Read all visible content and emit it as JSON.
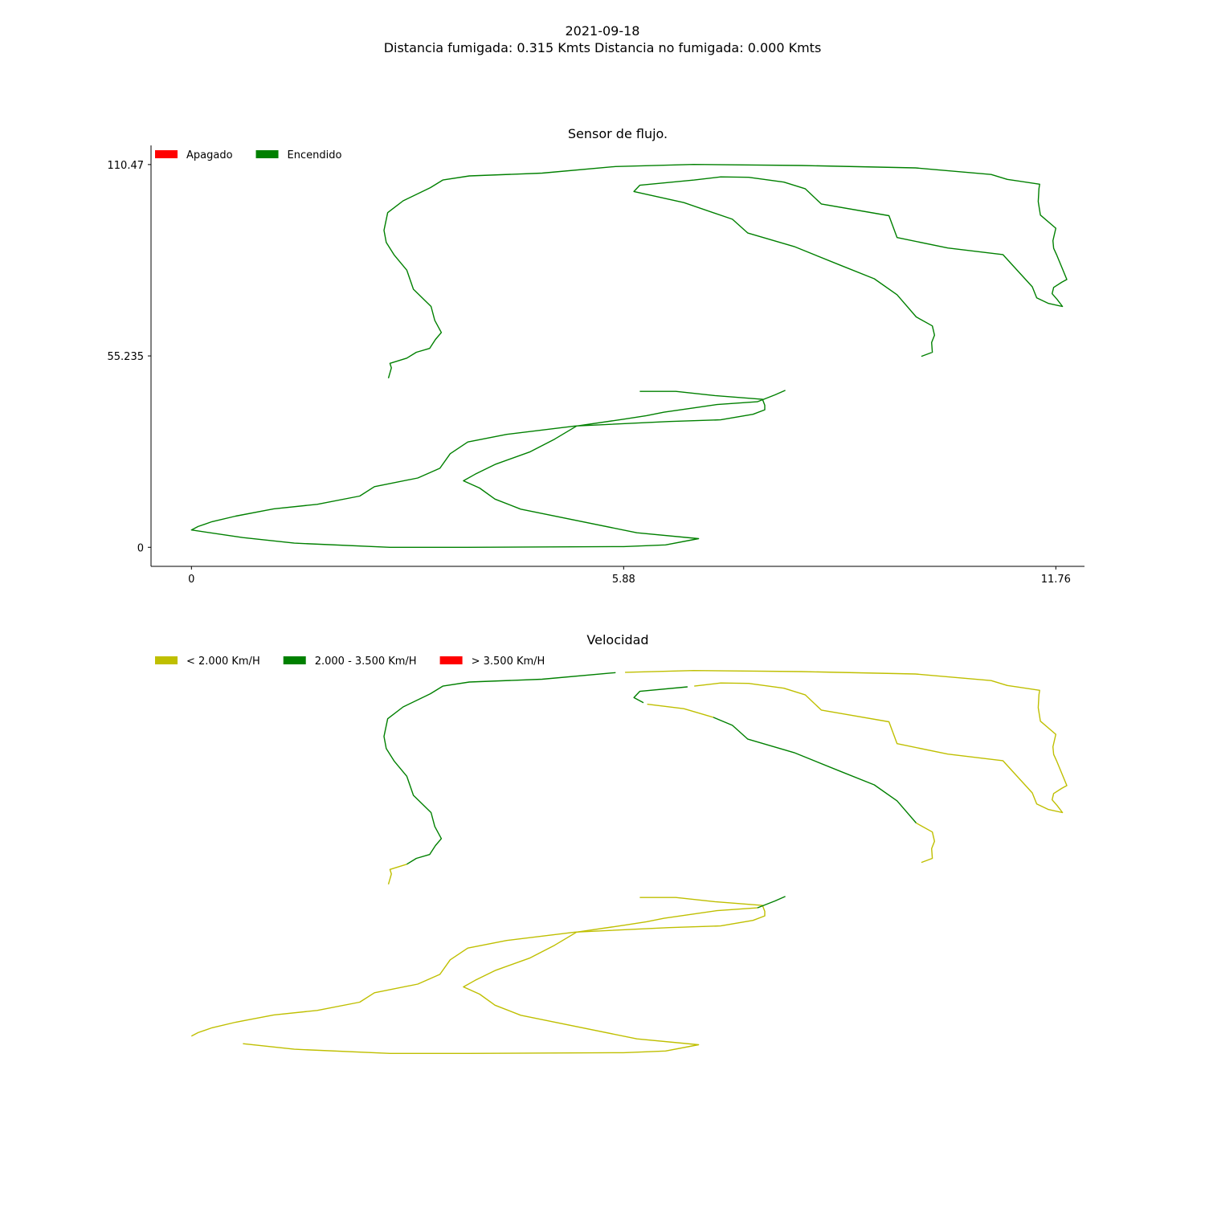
{
  "figure": {
    "title_line1": "2021-09-18",
    "title_line2": "Distancia fumigada: 0.315 Kmts Distancia no fumigada: 0.000 Kmts"
  },
  "colors": {
    "green": "#008000",
    "red": "#ff0000",
    "olive": "#bfbf00"
  },
  "chart_data": [
    {
      "type": "line",
      "title": "Sensor de flujo.",
      "xlabel": "",
      "ylabel": "",
      "xlim": [
        -0.55,
        12.15
      ],
      "ylim": [
        -5.5,
        116.0
      ],
      "xticks": [
        0,
        5.88,
        11.76
      ],
      "xtick_labels": [
        "0",
        "5.88",
        "11.76"
      ],
      "yticks": [
        0,
        55.235,
        110.47
      ],
      "ytick_labels": [
        "0",
        "55.235",
        "110.47"
      ],
      "grid": false,
      "legend_position": "top-left",
      "legend": [
        {
          "label": "Apagado",
          "color": "#ff0000"
        },
        {
          "label": "Encendido",
          "color": "#008000"
        }
      ],
      "series": [
        {
          "name": "Encendido",
          "color": "#008000",
          "points": [
            [
              2.68,
              48.8
            ],
            [
              2.72,
              51.8
            ],
            [
              2.7,
              53.1
            ],
            [
              2.93,
              54.6
            ],
            [
              3.06,
              56.3
            ],
            [
              3.24,
              57.4
            ],
            [
              3.32,
              60.0
            ],
            [
              3.4,
              62.0
            ],
            [
              3.31,
              65.5
            ],
            [
              3.26,
              69.5
            ],
            [
              3.02,
              74.5
            ],
            [
              2.93,
              80.0
            ],
            [
              2.76,
              84.3
            ],
            [
              2.65,
              88.0
            ],
            [
              2.62,
              91.5
            ],
            [
              2.67,
              96.6
            ],
            [
              2.88,
              100.0
            ],
            [
              3.25,
              103.8
            ],
            [
              3.42,
              106.0
            ],
            [
              3.78,
              107.2
            ],
            [
              4.77,
              108.0
            ],
            [
              5.77,
              109.9
            ],
            [
              6.83,
              110.5
            ],
            [
              8.3,
              110.2
            ],
            [
              9.85,
              109.5
            ],
            [
              10.88,
              107.6
            ],
            [
              11.1,
              106.2
            ],
            [
              11.54,
              104.8
            ],
            [
              11.53,
              103.5
            ],
            [
              11.52,
              99.8
            ],
            [
              11.55,
              95.9
            ],
            [
              11.76,
              92.1
            ],
            [
              11.72,
              88.5
            ],
            [
              11.73,
              86.3
            ],
            [
              11.77,
              84.5
            ],
            [
              11.91,
              77.3
            ],
            [
              11.84,
              76.5
            ],
            [
              11.73,
              75.0
            ],
            [
              11.71,
              73.2
            ],
            [
              11.78,
              71.5
            ],
            [
              11.85,
              69.5
            ],
            [
              11.66,
              70.4
            ],
            [
              11.5,
              72.0
            ],
            [
              11.44,
              75.2
            ],
            [
              11.04,
              84.5
            ],
            [
              10.29,
              86.4
            ],
            [
              9.6,
              89.4
            ],
            [
              9.49,
              95.7
            ],
            [
              8.57,
              99.1
            ],
            [
              8.35,
              103.5
            ],
            [
              8.06,
              105.4
            ],
            [
              7.58,
              106.8
            ],
            [
              7.2,
              106.9
            ],
            [
              6.84,
              106.0
            ],
            [
              6.1,
              104.5
            ],
            [
              6.02,
              102.7
            ],
            [
              6.7,
              99.5
            ],
            [
              7.36,
              94.7
            ],
            [
              7.57,
              90.7
            ],
            [
              8.2,
              86.8
            ],
            [
              8.83,
              81.4
            ],
            [
              9.29,
              77.5
            ],
            [
              9.6,
              72.9
            ],
            [
              9.86,
              66.5
            ],
            [
              10.08,
              63.9
            ],
            [
              10.11,
              61.2
            ],
            [
              10.07,
              59.1
            ],
            [
              10.08,
              56.3
            ],
            [
              9.93,
              55.1
            ]
          ]
        },
        {
          "name": "Encendido",
          "color": "#008000",
          "points": [
            [
              6.1,
              45.0
            ],
            [
              6.59,
              45.0
            ],
            [
              7.12,
              43.8
            ],
            [
              7.77,
              42.7
            ],
            [
              7.8,
              41.0
            ],
            [
              7.8,
              39.7
            ],
            [
              7.64,
              38.4
            ],
            [
              7.2,
              36.8
            ],
            [
              6.5,
              36.3
            ],
            [
              5.22,
              35.0
            ],
            [
              4.29,
              32.6
            ],
            [
              3.76,
              30.4
            ],
            [
              3.52,
              27.0
            ],
            [
              3.38,
              22.8
            ],
            [
              3.08,
              20.0
            ],
            [
              2.49,
              17.5
            ],
            [
              2.29,
              14.8
            ],
            [
              1.71,
              12.4
            ],
            [
              1.12,
              11.1
            ],
            [
              0.6,
              9.0
            ],
            [
              0.28,
              7.4
            ],
            [
              0.09,
              6.0
            ],
            [
              0.0,
              5.0
            ],
            [
              0.7,
              2.8
            ],
            [
              1.4,
              1.2
            ],
            [
              2.7,
              0.0
            ],
            [
              3.75,
              0.0
            ],
            [
              5.88,
              0.2
            ],
            [
              6.45,
              0.7
            ],
            [
              6.9,
              2.5
            ],
            [
              6.06,
              4.2
            ],
            [
              4.48,
              11.0
            ],
            [
              4.13,
              13.9
            ],
            [
              3.92,
              17.1
            ],
            [
              3.7,
              19.2
            ],
            [
              3.86,
              21.1
            ],
            [
              4.14,
              24.0
            ],
            [
              4.6,
              27.5
            ],
            [
              4.94,
              31.2
            ],
            [
              5.24,
              35.0
            ],
            [
              5.89,
              37.0
            ],
            [
              6.19,
              38.0
            ],
            [
              6.43,
              39.0
            ],
            [
              7.15,
              41.2
            ],
            [
              7.7,
              42.0
            ],
            [
              7.94,
              44.0
            ],
            [
              8.08,
              45.3
            ]
          ]
        }
      ]
    },
    {
      "type": "line",
      "title": "Velocidad",
      "xlabel": "",
      "ylabel": "",
      "xlim": [
        -0.55,
        12.15
      ],
      "ylim": [
        -5.5,
        116.0
      ],
      "axes_visible": false,
      "grid": false,
      "legend_position": "top-left",
      "legend": [
        {
          "label": "< 2.000 Km/H",
          "color": "#bfbf00"
        },
        {
          "label": "2.000 - 3.500 Km/H",
          "color": "#008000"
        },
        {
          "label": "> 3.500 Km/H",
          "color": "#ff0000"
        }
      ],
      "series": [
        {
          "name": "< 2.000 Km/H",
          "color": "#bfbf00",
          "points": [
            [
              2.68,
              48.8
            ],
            [
              2.72,
              51.8
            ],
            [
              2.7,
              53.1
            ],
            [
              2.93,
              54.6
            ]
          ]
        },
        {
          "name": "2.000 - 3.500 Km/H",
          "color": "#008000",
          "points": [
            [
              2.93,
              54.6
            ],
            [
              3.06,
              56.3
            ],
            [
              3.24,
              57.4
            ],
            [
              3.32,
              60.0
            ],
            [
              3.4,
              62.0
            ],
            [
              3.31,
              65.5
            ],
            [
              3.26,
              69.5
            ],
            [
              3.02,
              74.5
            ],
            [
              2.93,
              80.0
            ],
            [
              2.76,
              84.3
            ],
            [
              2.65,
              88.0
            ],
            [
              2.62,
              91.5
            ],
            [
              2.67,
              96.6
            ],
            [
              2.88,
              100.0
            ],
            [
              3.25,
              103.8
            ],
            [
              3.42,
              106.0
            ],
            [
              3.78,
              107.2
            ],
            [
              4.77,
              108.0
            ],
            [
              5.77,
              109.9
            ]
          ]
        },
        {
          "name": "< 2.000 Km/H",
          "color": "#bfbf00",
          "points": [
            [
              5.9,
              110.0
            ],
            [
              6.83,
              110.5
            ],
            [
              8.3,
              110.2
            ],
            [
              9.85,
              109.5
            ],
            [
              10.88,
              107.6
            ],
            [
              11.1,
              106.2
            ],
            [
              11.54,
              104.8
            ],
            [
              11.53,
              103.5
            ],
            [
              11.52,
              99.8
            ],
            [
              11.55,
              95.9
            ],
            [
              11.76,
              92.1
            ],
            [
              11.72,
              88.5
            ],
            [
              11.73,
              86.3
            ],
            [
              11.77,
              84.5
            ],
            [
              11.91,
              77.3
            ],
            [
              11.84,
              76.5
            ],
            [
              11.73,
              75.0
            ],
            [
              11.71,
              73.2
            ],
            [
              11.78,
              71.5
            ],
            [
              11.85,
              69.5
            ],
            [
              11.66,
              70.4
            ],
            [
              11.5,
              72.0
            ],
            [
              11.44,
              75.2
            ],
            [
              11.04,
              84.5
            ],
            [
              10.29,
              86.4
            ],
            [
              9.6,
              89.4
            ],
            [
              9.49,
              95.7
            ],
            [
              8.57,
              99.1
            ],
            [
              8.35,
              103.5
            ],
            [
              8.06,
              105.4
            ],
            [
              7.58,
              106.8
            ],
            [
              7.2,
              106.9
            ],
            [
              6.84,
              106.0
            ]
          ]
        },
        {
          "name": "2.000 - 3.500 Km/H",
          "color": "#008000",
          "points": [
            [
              6.75,
              105.8
            ],
            [
              6.1,
              104.5
            ],
            [
              6.02,
              102.7
            ],
            [
              6.15,
              101.2
            ]
          ]
        },
        {
          "name": "< 2.000 Km/H",
          "color": "#bfbf00",
          "points": [
            [
              6.2,
              100.8
            ],
            [
              6.7,
              99.5
            ],
            [
              7.1,
              97.0
            ]
          ]
        },
        {
          "name": "2.000 - 3.500 Km/H",
          "color": "#008000",
          "points": [
            [
              7.1,
              97.0
            ],
            [
              7.36,
              94.7
            ],
            [
              7.57,
              90.7
            ],
            [
              8.2,
              86.8
            ],
            [
              8.83,
              81.4
            ],
            [
              9.29,
              77.5
            ],
            [
              9.6,
              72.9
            ],
            [
              9.86,
              66.5
            ]
          ]
        },
        {
          "name": "< 2.000 Km/H",
          "color": "#bfbf00",
          "points": [
            [
              9.86,
              66.5
            ],
            [
              10.08,
              63.9
            ],
            [
              10.11,
              61.2
            ],
            [
              10.07,
              59.1
            ],
            [
              10.08,
              56.3
            ],
            [
              9.93,
              55.1
            ]
          ]
        },
        {
          "name": "< 2.000 Km/H",
          "color": "#bfbf00",
          "points": [
            [
              6.1,
              45.0
            ],
            [
              6.59,
              45.0
            ],
            [
              7.12,
              43.8
            ],
            [
              7.77,
              42.7
            ],
            [
              7.8,
              41.0
            ],
            [
              7.8,
              39.7
            ],
            [
              7.64,
              38.4
            ],
            [
              7.2,
              36.8
            ],
            [
              6.5,
              36.3
            ],
            [
              5.22,
              35.0
            ],
            [
              4.29,
              32.6
            ],
            [
              3.76,
              30.4
            ],
            [
              3.52,
              27.0
            ],
            [
              3.38,
              22.8
            ],
            [
              3.08,
              20.0
            ],
            [
              2.49,
              17.5
            ],
            [
              2.29,
              14.8
            ],
            [
              1.71,
              12.4
            ],
            [
              1.12,
              11.1
            ],
            [
              0.6,
              9.0
            ],
            [
              0.28,
              7.4
            ],
            [
              0.09,
              6.0
            ],
            [
              0.0,
              5.0
            ]
          ]
        },
        {
          "name": "< 2.000 Km/H",
          "color": "#bfbf00",
          "points": [
            [
              0.7,
              2.8
            ],
            [
              1.4,
              1.2
            ],
            [
              2.7,
              0.0
            ],
            [
              3.75,
              0.0
            ],
            [
              5.88,
              0.2
            ],
            [
              6.45,
              0.7
            ],
            [
              6.9,
              2.5
            ],
            [
              6.06,
              4.2
            ],
            [
              4.48,
              11.0
            ],
            [
              4.13,
              13.9
            ],
            [
              3.92,
              17.1
            ],
            [
              3.7,
              19.2
            ],
            [
              3.86,
              21.1
            ],
            [
              4.14,
              24.0
            ],
            [
              4.6,
              27.5
            ],
            [
              4.94,
              31.2
            ],
            [
              5.24,
              35.0
            ],
            [
              5.89,
              37.0
            ],
            [
              6.19,
              38.0
            ],
            [
              6.43,
              39.0
            ],
            [
              7.15,
              41.2
            ],
            [
              7.7,
              42.0
            ]
          ]
        },
        {
          "name": "2.000 - 3.500 Km/H",
          "color": "#008000",
          "points": [
            [
              7.7,
              42.0
            ],
            [
              7.94,
              44.0
            ],
            [
              8.08,
              45.3
            ]
          ]
        }
      ]
    }
  ]
}
